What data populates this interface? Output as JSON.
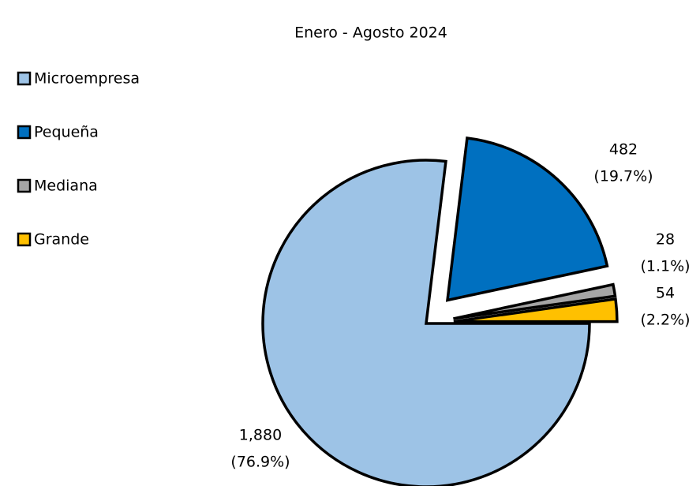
{
  "chart_data": {
    "type": "pie",
    "title": "Enero - Agosto 2024",
    "categories": [
      "Microempresa",
      "Pequeña",
      "Mediana",
      "Grande"
    ],
    "values": [
      1880,
      482,
      28,
      54
    ],
    "value_labels": [
      "1,880",
      "482",
      "28",
      "54"
    ],
    "percents": [
      76.9,
      19.7,
      1.1,
      2.2
    ],
    "percent_labels": [
      "(76.9%)",
      "(19.7%)",
      "(1.1%)",
      "(2.2%)"
    ],
    "colors": [
      "#9dc3e6",
      "#0070c0",
      "#a5a5a5",
      "#ffc000"
    ],
    "legend": "left"
  }
}
